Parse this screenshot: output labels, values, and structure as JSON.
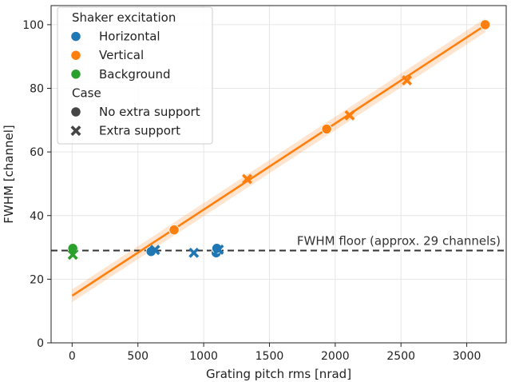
{
  "chart_data": {
    "type": "scatter",
    "xlabel": "Grating pitch rms [nrad]",
    "ylabel": "FWHM [channel]",
    "xlim": [
      -160,
      3300
    ],
    "ylim": [
      0,
      106
    ],
    "xticks": [
      0,
      500,
      1000,
      1500,
      2000,
      2500,
      3000
    ],
    "yticks": [
      0,
      20,
      40,
      60,
      80,
      100
    ],
    "grid": true,
    "legend_position": "top-left",
    "legend": {
      "hue_title": "Shaker excitation",
      "style_title": "Case",
      "hue_items": [
        {
          "label": "Horizontal",
          "color": "#1f77b4"
        },
        {
          "label": "Vertical",
          "color": "#ff7f0e"
        },
        {
          "label": "Background",
          "color": "#2ca02c"
        }
      ],
      "style_items": [
        {
          "label": "No extra support",
          "marker": "circle"
        },
        {
          "label": "Extra support",
          "marker": "x"
        }
      ]
    },
    "series": [
      {
        "name": "Horizontal",
        "color": "#1f77b4",
        "points": [
          {
            "x": 600,
            "y": 28.7,
            "marker": "circle"
          },
          {
            "x": 1095,
            "y": 28.3,
            "marker": "circle"
          },
          {
            "x": 1100,
            "y": 29.7,
            "marker": "circle"
          },
          {
            "x": 630,
            "y": 29.2,
            "marker": "x"
          },
          {
            "x": 925,
            "y": 28.3,
            "marker": "x"
          },
          {
            "x": 1115,
            "y": 29.3,
            "marker": "x"
          }
        ]
      },
      {
        "name": "Vertical",
        "color": "#ff7f0e",
        "points": [
          {
            "x": 775,
            "y": 35.5,
            "marker": "circle"
          },
          {
            "x": 1935,
            "y": 67.2,
            "marker": "circle"
          },
          {
            "x": 3140,
            "y": 100,
            "marker": "circle"
          },
          {
            "x": 1330,
            "y": 51.5,
            "marker": "x"
          },
          {
            "x": 2110,
            "y": 71.5,
            "marker": "x"
          },
          {
            "x": 2545,
            "y": 82.5,
            "marker": "x"
          }
        ]
      },
      {
        "name": "Background",
        "color": "#2ca02c",
        "points": [
          {
            "x": 5,
            "y": 29.7,
            "marker": "circle"
          },
          {
            "x": 5,
            "y": 27.7,
            "marker": "x"
          }
        ]
      }
    ],
    "fit": {
      "color": "#ff7f0e",
      "x": [
        0,
        3140
      ],
      "y": [
        14.8,
        99.8
      ],
      "band_lower": [
        12.8,
        97.6
      ],
      "band_upper": [
        16.8,
        102.0
      ]
    },
    "reference_line": {
      "y": 29,
      "label": "FWHM floor (approx. 29 channels)",
      "color": "#333333"
    }
  }
}
